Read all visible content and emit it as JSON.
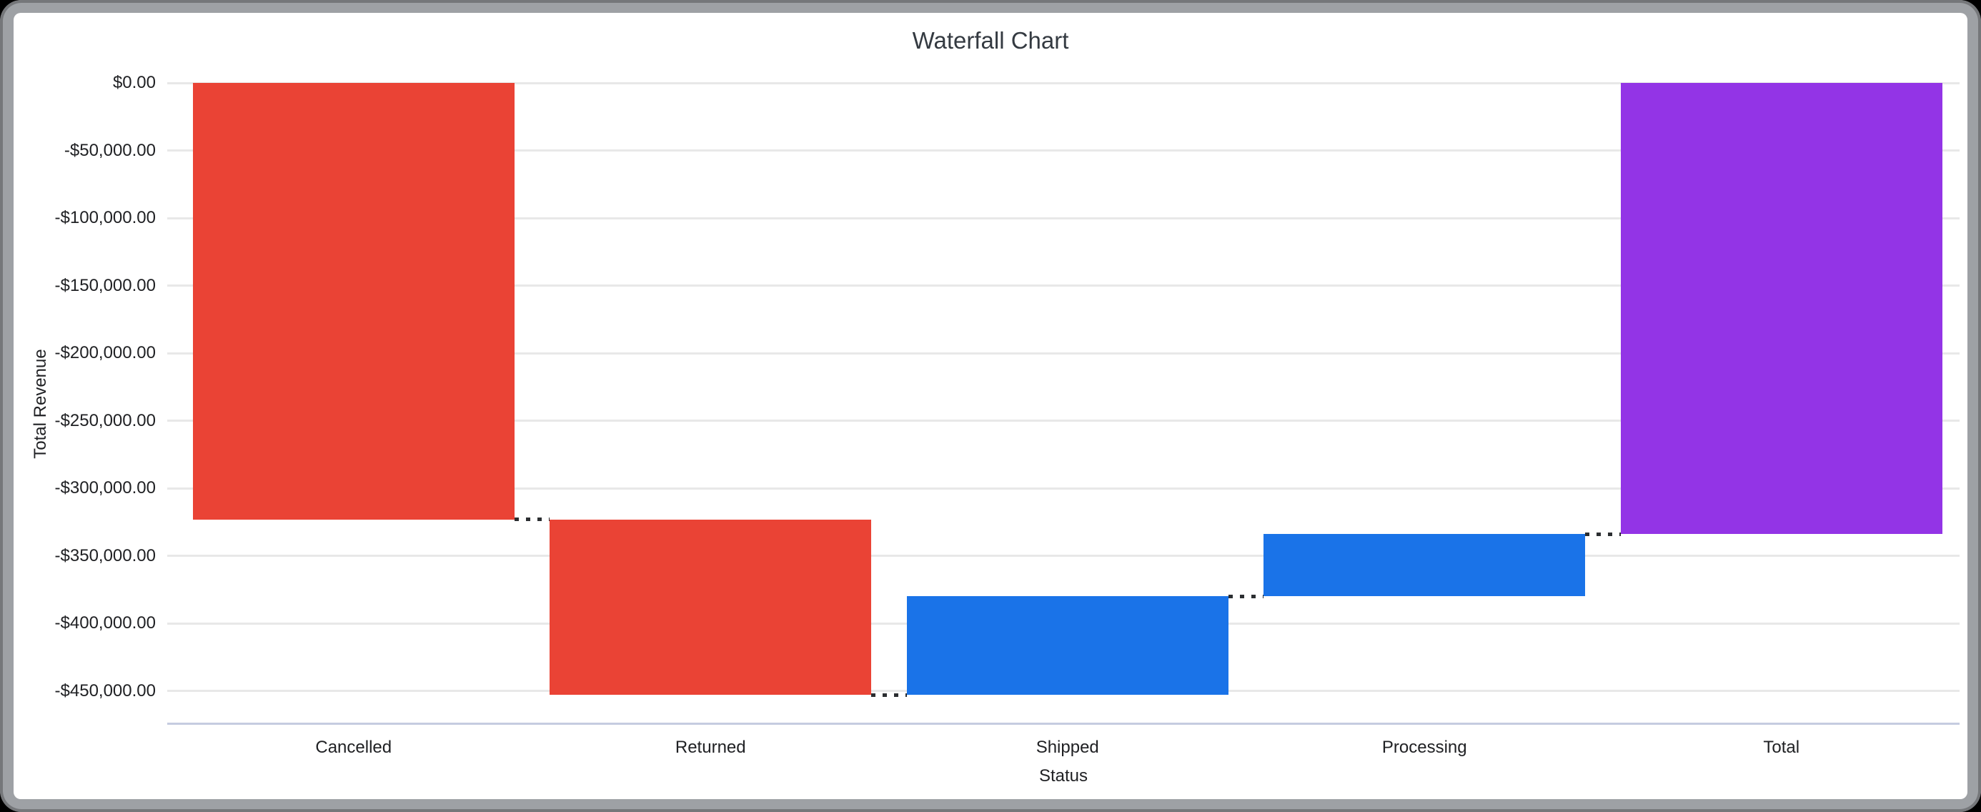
{
  "chart_data": {
    "type": "waterfall",
    "title": "Waterfall Chart",
    "xlabel": "Status",
    "ylabel": "Total Revenue",
    "legend": "none",
    "grid": "horizontal-only",
    "y_axis": {
      "max": 0,
      "min": -474500,
      "tick_step": 50000,
      "format": "currency USD with cents"
    },
    "y_ticks": [
      {
        "label": "$0.00",
        "value": 0
      },
      {
        "label": "-$50,000.00",
        "value": -50000
      },
      {
        "label": "-$100,000.00",
        "value": -100000
      },
      {
        "label": "-$150,000.00",
        "value": -150000
      },
      {
        "label": "-$200,000.00",
        "value": -200000
      },
      {
        "label": "-$250,000.00",
        "value": -250000
      },
      {
        "label": "-$300,000.00",
        "value": -300000
      },
      {
        "label": "-$350,000.00",
        "value": -350000
      },
      {
        "label": "-$400,000.00",
        "value": -400000
      },
      {
        "label": "-$450,000.00",
        "value": -450000
      }
    ],
    "categories": [
      "Cancelled",
      "Returned",
      "Shipped",
      "Processing",
      "Total"
    ],
    "bars": [
      {
        "label": "Cancelled",
        "start": 0,
        "end": -323000,
        "delta": -323000,
        "kind": "decrease",
        "color": "#EA4335"
      },
      {
        "label": "Returned",
        "start": -323000,
        "end": -453000,
        "delta": -130000,
        "kind": "decrease",
        "color": "#EA4335"
      },
      {
        "label": "Shipped",
        "start": -453000,
        "end": -380000,
        "delta": 73000,
        "kind": "increase",
        "color": "#1A73E8"
      },
      {
        "label": "Processing",
        "start": -380000,
        "end": -334000,
        "delta": 46000,
        "kind": "increase",
        "color": "#1A73E8"
      },
      {
        "label": "Total",
        "start": 0,
        "end": -334000,
        "delta": -334000,
        "kind": "total",
        "color": "#9334E6"
      }
    ],
    "colors": {
      "decrease": "#EA4335",
      "increase": "#1A73E8",
      "total": "#9334E6",
      "gridline": "#E8E8E8",
      "axis_line": "#C5CCE0",
      "connector": "#2B2E31",
      "text": "#202124"
    }
  }
}
